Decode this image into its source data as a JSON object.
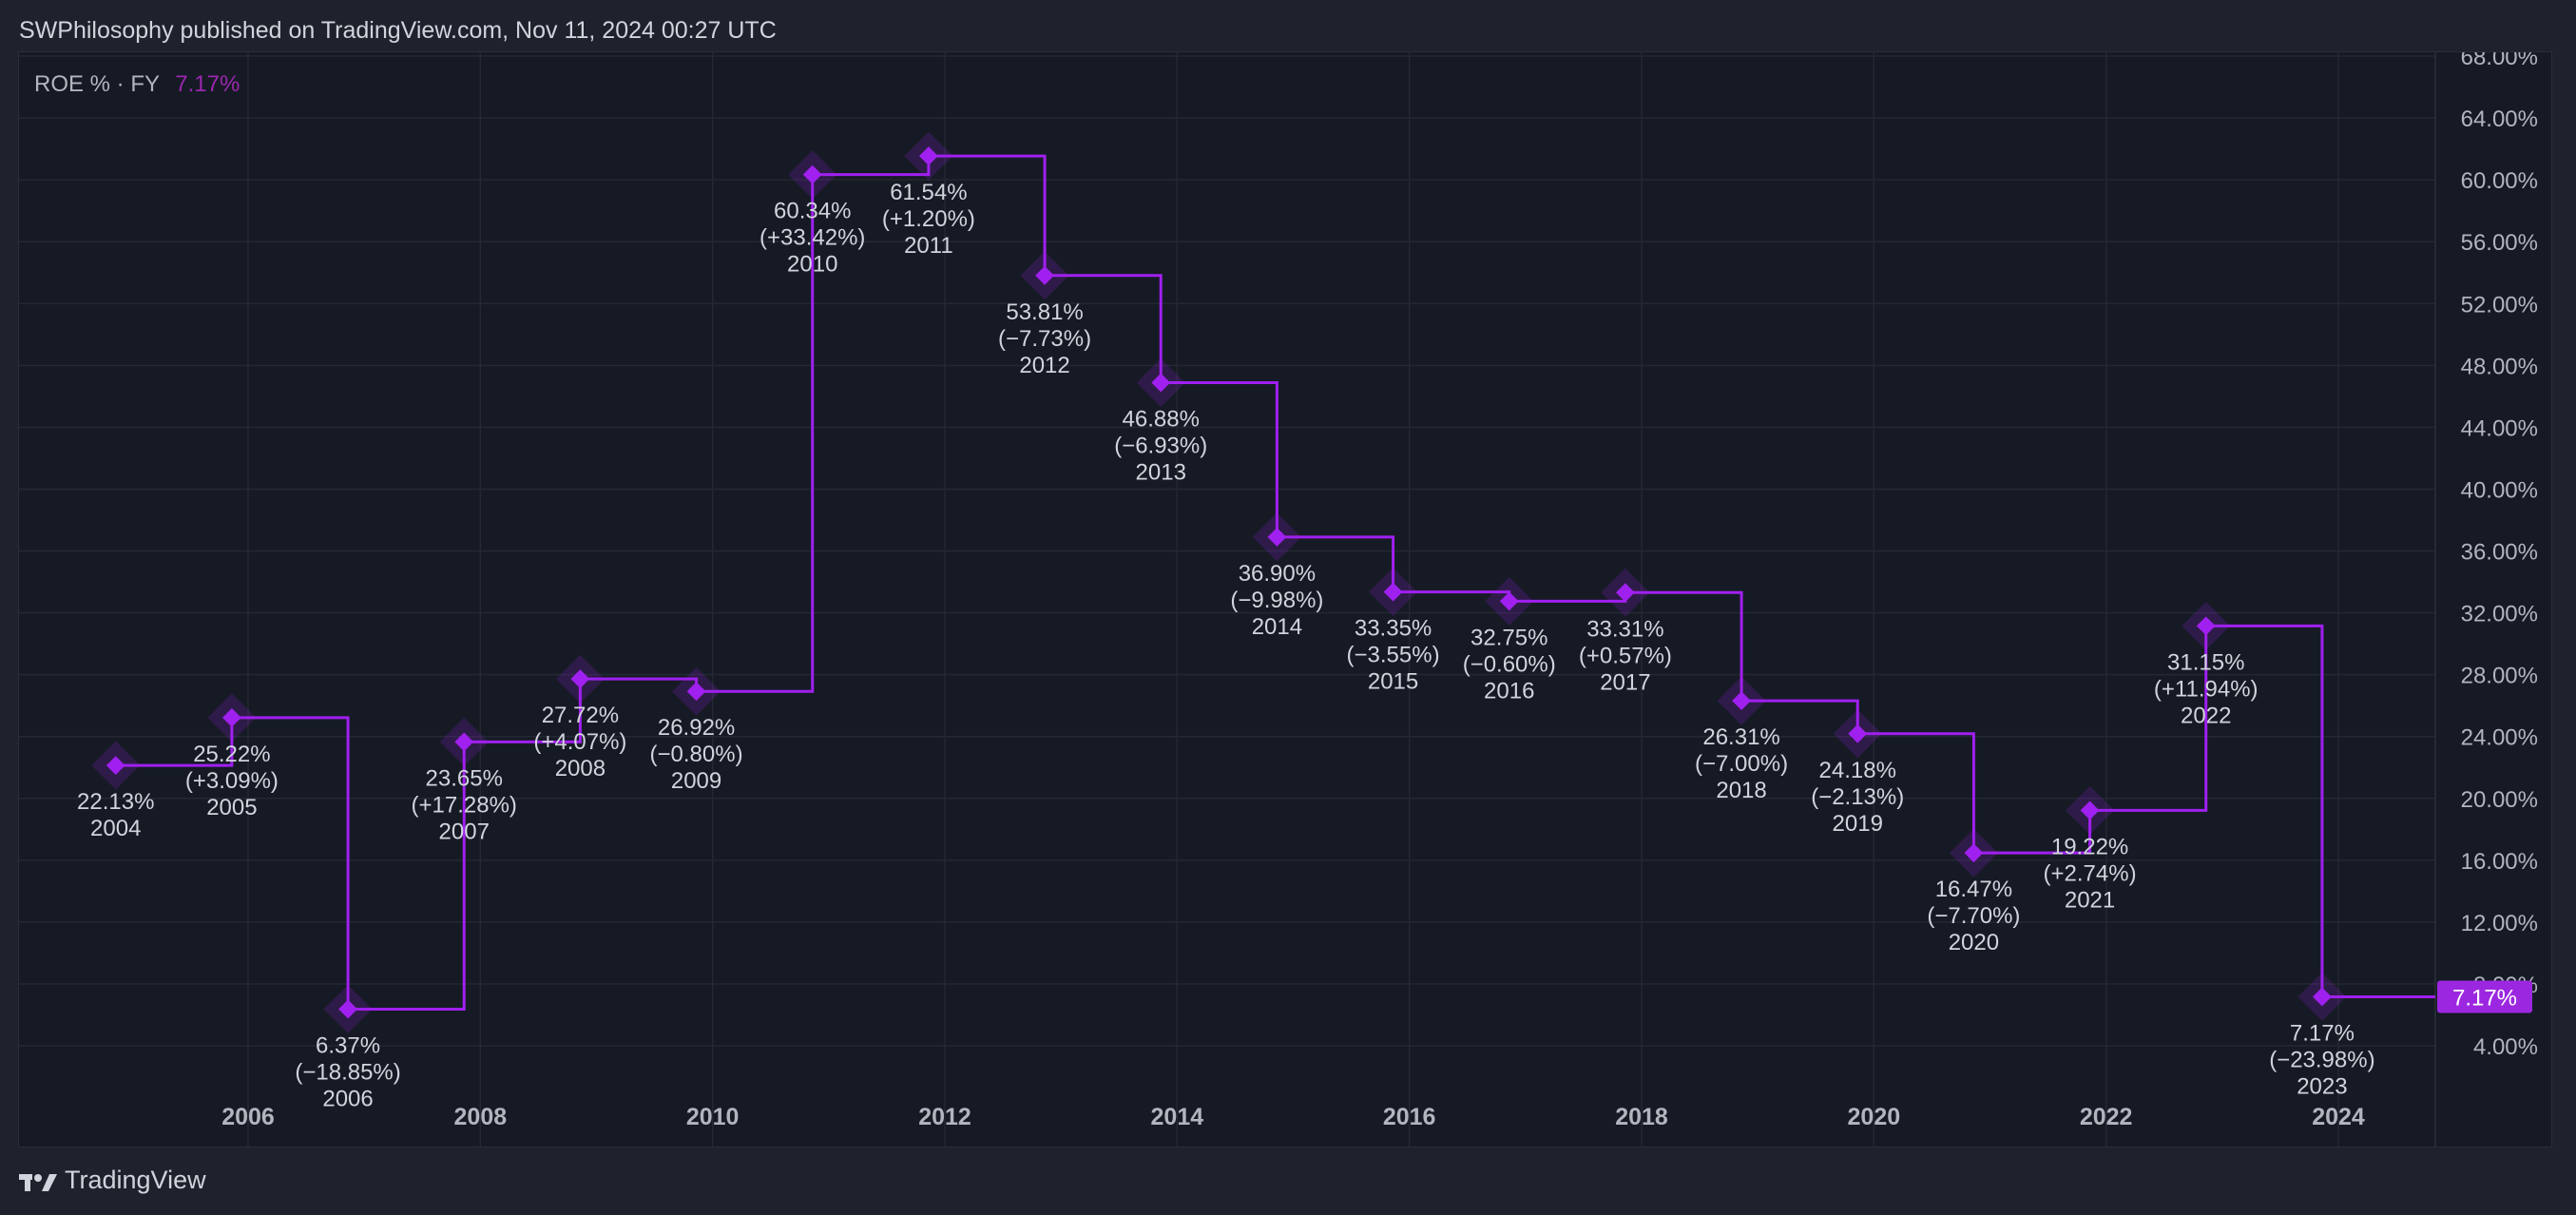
{
  "header": {
    "publisher_line": "SWPhilosophy published on TradingView.com, Nov 11, 2024 00:27 UTC"
  },
  "legend": {
    "label": "ROE % · FY",
    "value": "7.17%",
    "value_color": "#9c27b0"
  },
  "footer": {
    "brand": "TradingView",
    "logo_icon": "tradingview-logo-icon"
  },
  "colors": {
    "series": "#a020f0",
    "last_value_bg": "#9c27e0",
    "grid": "#242832",
    "axis_text": "#b2b5be",
    "label_text": "#d1d4dc"
  },
  "chart_data": {
    "type": "line",
    "step": true,
    "series": [
      {
        "points": [
          {
            "year": 2004,
            "value": 22.13,
            "change": "",
            "label": "22.13%"
          },
          {
            "year": 2005,
            "value": 25.22,
            "change": "(+3.09%)",
            "label": "25.22%"
          },
          {
            "year": 2006,
            "value": 6.37,
            "change": "(−18.85%)",
            "label": "6.37%"
          },
          {
            "year": 2007,
            "value": 23.65,
            "change": "(+17.28%)",
            "label": "23.65%"
          },
          {
            "year": 2008,
            "value": 27.72,
            "change": "(+4.07%)",
            "label": "27.72%"
          },
          {
            "year": 2009,
            "value": 26.92,
            "change": "(−0.80%)",
            "label": "26.92%"
          },
          {
            "year": 2010,
            "value": 60.34,
            "change": "(+33.42%)",
            "label": "60.34%"
          },
          {
            "year": 2011,
            "value": 61.54,
            "change": "(+1.20%)",
            "label": "61.54%"
          },
          {
            "year": 2012,
            "value": 53.81,
            "change": "(−7.73%)",
            "label": "53.81%"
          },
          {
            "year": 2013,
            "value": 46.88,
            "change": "(−6.93%)",
            "label": "46.88%"
          },
          {
            "year": 2014,
            "value": 36.9,
            "change": "(−9.98%)",
            "label": "36.90%"
          },
          {
            "year": 2015,
            "value": 33.35,
            "change": "(−3.55%)",
            "label": "33.35%"
          },
          {
            "year": 2016,
            "value": 32.75,
            "change": "(−0.60%)",
            "label": "32.75%"
          },
          {
            "year": 2017,
            "value": 33.31,
            "change": "(+0.57%)",
            "label": "33.31%"
          },
          {
            "year": 2018,
            "value": 26.31,
            "change": "(−7.00%)",
            "label": "26.31%"
          },
          {
            "year": 2019,
            "value": 24.18,
            "change": "(−2.13%)",
            "label": "24.18%"
          },
          {
            "year": 2020,
            "value": 16.47,
            "change": "(−7.70%)",
            "label": "16.47%"
          },
          {
            "year": 2021,
            "value": 19.22,
            "change": "(+2.74%)",
            "label": "19.22%"
          },
          {
            "year": 2022,
            "value": 31.15,
            "change": "(+11.94%)",
            "label": "31.15%"
          },
          {
            "year": 2023,
            "value": 7.17,
            "change": "(−23.98%)",
            "label": "7.17%"
          }
        ]
      }
    ],
    "x_ticks": [
      "2006",
      "2008",
      "2010",
      "2012",
      "2014",
      "2016",
      "2018",
      "2020",
      "2022",
      "2024"
    ],
    "y_ticks": [
      "4.00%",
      "8.00%",
      "12.00%",
      "16.00%",
      "20.00%",
      "24.00%",
      "28.00%",
      "32.00%",
      "36.00%",
      "40.00%",
      "44.00%",
      "48.00%",
      "52.00%",
      "56.00%",
      "60.00%",
      "64.00%",
      "68.00%"
    ],
    "ylim": [
      2,
      68
    ],
    "xlim": [
      2004.0,
      2025.9
    ],
    "grid": true,
    "last_value_label": "7.17%"
  }
}
